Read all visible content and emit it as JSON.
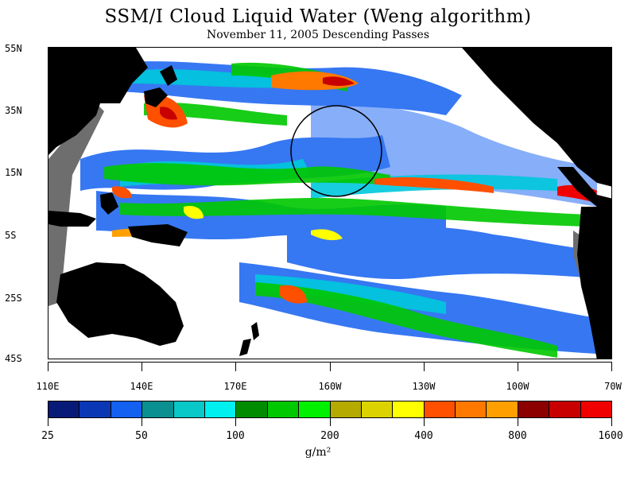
{
  "title": "SSM/I Cloud Liquid Water (Weng algorithm)",
  "subtitle": "November 11, 2005  Descending Passes",
  "latitude_labels": [
    "55N",
    "35N",
    "15N",
    "5S",
    "25S",
    "45S"
  ],
  "longitude_labels": [
    "110E",
    "140E",
    "170E",
    "160W",
    "130W",
    "100W",
    "70W"
  ],
  "colorbar": {
    "colors": [
      "#081a78",
      "#0a38b4",
      "#1460f0",
      "#0a9090",
      "#08c8c8",
      "#00f0f0",
      "#008c00",
      "#00c800",
      "#00f000",
      "#b4aa00",
      "#dcd200",
      "#ffff00",
      "#ff5000",
      "#ff7800",
      "#ffa000",
      "#8c0000",
      "#c80000",
      "#f00000"
    ],
    "tick_labels": [
      "25",
      "50",
      "100",
      "200",
      "400",
      "800",
      "1600"
    ],
    "units": "g/m²"
  },
  "map": {
    "ocean_color": "#ffffff",
    "land_color": "#000000",
    "no_data_color": "#6e6e6e",
    "annotation": "circle"
  }
}
